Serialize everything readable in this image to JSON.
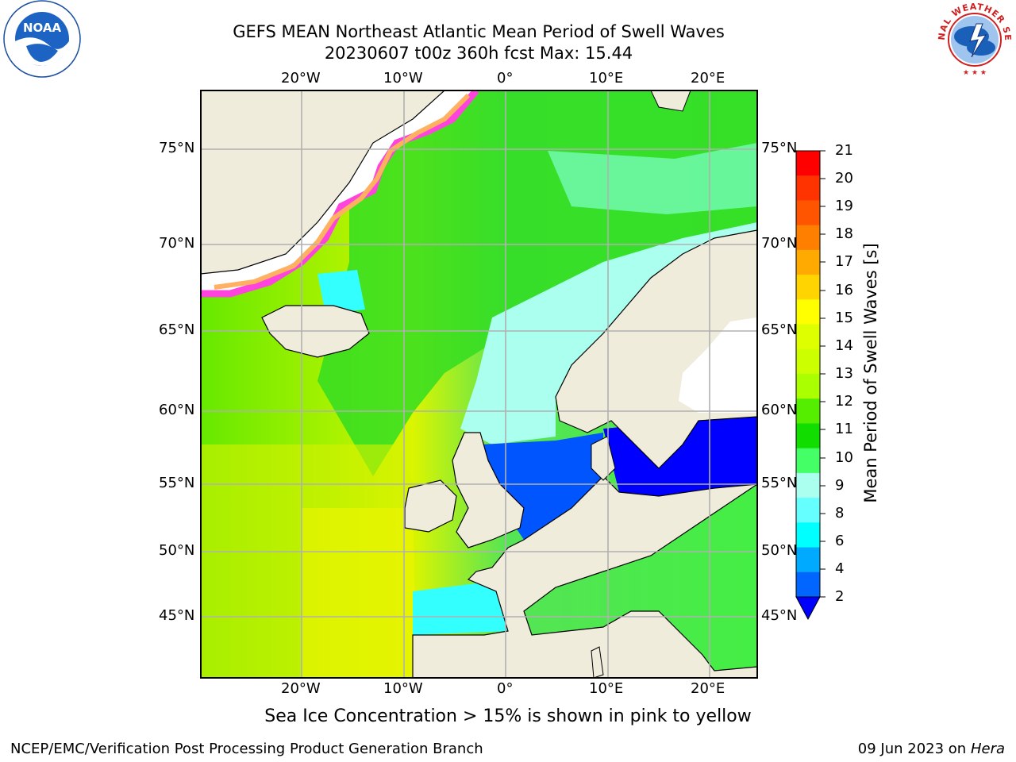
{
  "header": {
    "title": "GEFS MEAN Northeast Atlantic Mean Period of Swell Waves",
    "subtitle": "20230607 t00z 360h fcst   Max: 15.44"
  },
  "logos": {
    "left": "NOAA",
    "right_text": "NATIONAL WEATHER SERVICE"
  },
  "map": {
    "lon_labels": [
      "20°W",
      "10°W",
      "0°",
      "10°E",
      "20°E"
    ],
    "lat_labels": [
      "75°N",
      "70°N",
      "65°N",
      "60°N",
      "55°N",
      "50°N",
      "45°N"
    ],
    "land_color": "#efecdc",
    "ice_color": "#ff44dd"
  },
  "colorbar": {
    "label": "Mean Period of Swell Waves [s]",
    "ticks": [
      "21",
      "20",
      "19",
      "18",
      "17",
      "16",
      "15",
      "14",
      "13",
      "12",
      "11",
      "10",
      "9",
      "8",
      "6",
      "4",
      "2"
    ],
    "colors": [
      "#ff0000",
      "#ff3300",
      "#ff5500",
      "#ff7f00",
      "#ffaa00",
      "#ffd400",
      "#ffff00",
      "#ddff00",
      "#ccff00",
      "#aaff00",
      "#55ee00",
      "#11dd00",
      "#44ff66",
      "#aaffee",
      "#66ffff",
      "#00ffff",
      "#00aaff",
      "#0066ff",
      "#0000ff"
    ]
  },
  "note": "Sea Ice Concentration > 15% is shown in pink to yellow",
  "footer": {
    "left": "NCEP/EMC/Verification Post Processing Product Generation Branch",
    "right_date": "09 Jun 2023 on",
    "right_host": "Hera"
  }
}
